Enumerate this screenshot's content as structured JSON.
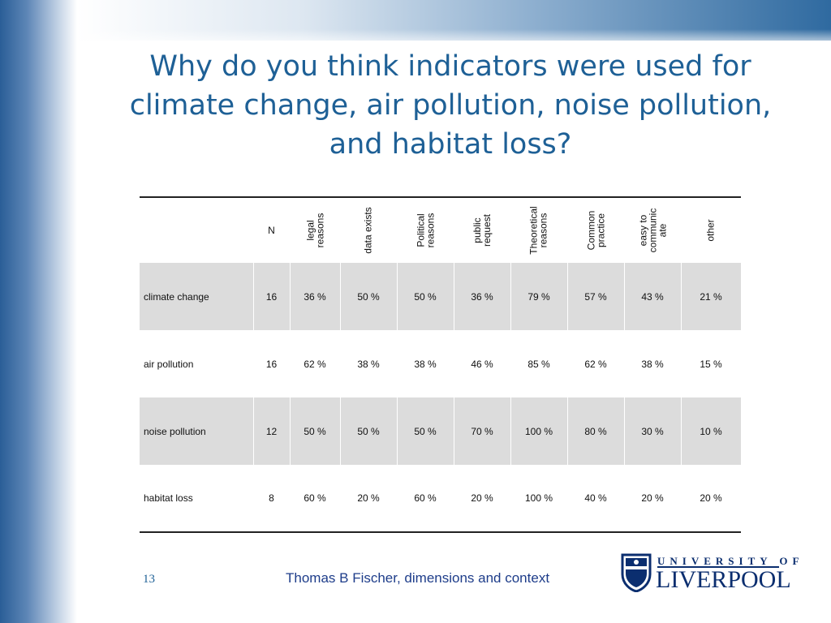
{
  "title": "Why do you think indicators were used for climate change, air pollution, noise pollution, and habitat loss?",
  "table": {
    "headers": [
      "N",
      "legal\nreasons",
      "data exists",
      "Political\nreasons",
      "public\nrequest",
      "Theoretical\nreasons",
      "Common\npractice",
      "easy to\ncommunic\nate",
      "other"
    ],
    "rows": [
      {
        "label": "climate change",
        "cells": [
          "16",
          "36 %",
          "50 %",
          "50 %",
          "36 %",
          "79 %",
          "57 %",
          "43 %",
          "21 %"
        ]
      },
      {
        "label": "air pollution",
        "cells": [
          "16",
          "62 %",
          "38 %",
          "38 %",
          "46 %",
          "85 %",
          "62 %",
          "38 %",
          "15 %"
        ]
      },
      {
        "label": "noise pollution",
        "cells": [
          "12",
          "50 %",
          "50 %",
          "50 %",
          "70 %",
          "100 %",
          "80 %",
          "30 %",
          "10 %"
        ]
      },
      {
        "label": "habitat loss",
        "cells": [
          "8",
          "60 %",
          "20 %",
          "60 %",
          "20 %",
          "100 %",
          "40 %",
          "20 %",
          "20 %"
        ]
      }
    ]
  },
  "footer": {
    "slide_number": "13",
    "text": "Thomas B Fischer, dimensions and context"
  },
  "logo": {
    "line1": "UNIVERSITY OF",
    "line2": "LIVERPOOL"
  },
  "colors": {
    "title": "#1e6096",
    "band": "#2a5e97",
    "shaded_row": "#dcdcdc"
  }
}
